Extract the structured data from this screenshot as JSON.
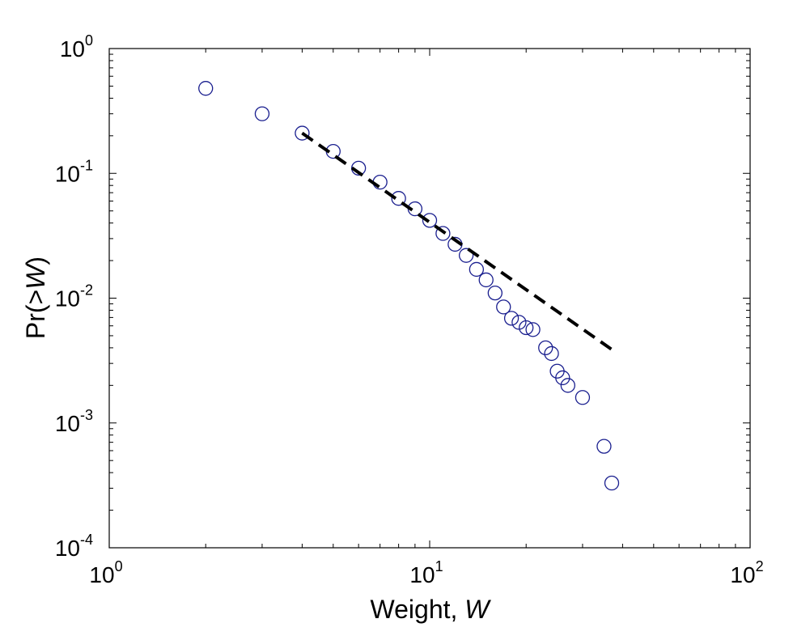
{
  "chart_data": {
    "type": "scatter",
    "xscale": "log",
    "yscale": "log",
    "xlim": [
      1,
      100
    ],
    "ylim": [
      0.0001,
      1
    ],
    "xlabel": {
      "text": "Weight, ",
      "var": "W"
    },
    "ylabel": {
      "text_before": "Pr(>",
      "var": "W",
      "text_after": ")"
    },
    "grid": false,
    "x_ticks": [
      {
        "base": "10",
        "exp": "0"
      },
      {
        "base": "10",
        "exp": "1"
      },
      {
        "base": "10",
        "exp": "2"
      }
    ],
    "y_ticks": [
      {
        "base": "10",
        "exp": "-4"
      },
      {
        "base": "10",
        "exp": "-3"
      },
      {
        "base": "10",
        "exp": "-2"
      },
      {
        "base": "10",
        "exp": "-1"
      },
      {
        "base": "10",
        "exp": "0"
      }
    ],
    "series": [
      {
        "marker": "open-circle",
        "color": "#1a1f8f",
        "points": [
          [
            2,
            0.48
          ],
          [
            3,
            0.3
          ],
          [
            4,
            0.21
          ],
          [
            5,
            0.15
          ],
          [
            6,
            0.11
          ],
          [
            7,
            0.085
          ],
          [
            8,
            0.063
          ],
          [
            9,
            0.052
          ],
          [
            10,
            0.042
          ],
          [
            11,
            0.033
          ],
          [
            12,
            0.027
          ],
          [
            13,
            0.022
          ],
          [
            14,
            0.017
          ],
          [
            15,
            0.014
          ],
          [
            16,
            0.011
          ],
          [
            17,
            0.0085
          ],
          [
            18,
            0.0069
          ],
          [
            19,
            0.0064
          ],
          [
            20,
            0.0058
          ],
          [
            21,
            0.0056
          ],
          [
            23,
            0.004
          ],
          [
            24,
            0.0036
          ],
          [
            25,
            0.0026
          ],
          [
            26,
            0.0023
          ],
          [
            27,
            0.002
          ],
          [
            30,
            0.0016
          ],
          [
            35,
            0.00065
          ],
          [
            37,
            0.00033
          ]
        ]
      },
      {
        "style": "dashed-line",
        "color": "#000000",
        "points": [
          [
            4,
            0.21
          ],
          [
            38,
            0.0037
          ]
        ]
      }
    ]
  }
}
